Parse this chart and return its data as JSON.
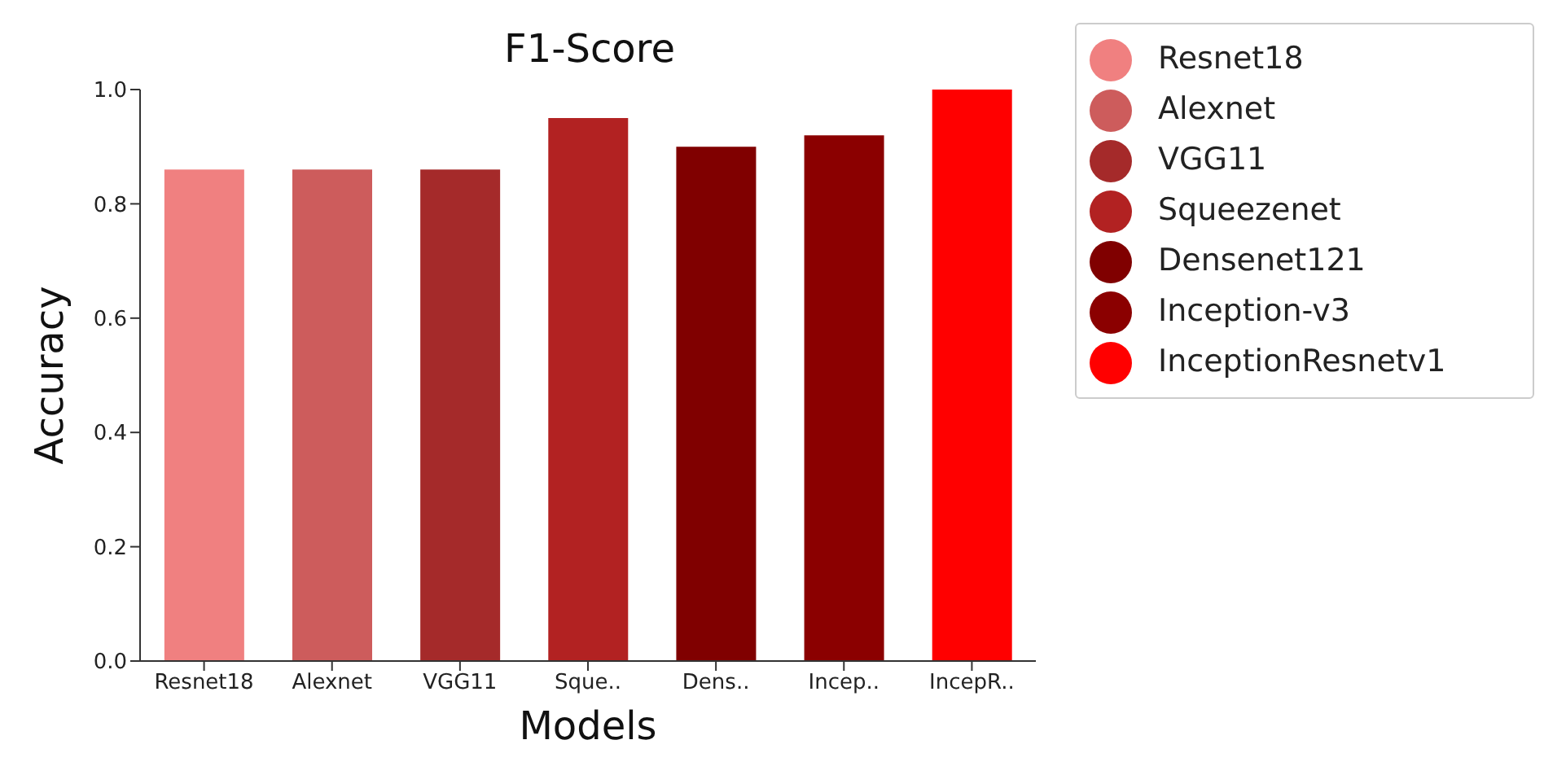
{
  "chart_data": {
    "type": "bar",
    "title": "F1-Score",
    "xlabel": "Models",
    "ylabel": "Accuracy",
    "categories": [
      "Resnet18",
      "Alexnet",
      "VGG11",
      "Sque..",
      "Dens..",
      "Incep..",
      "IncepR.."
    ],
    "series": [
      {
        "name": "Resnet18",
        "color": "#f08080",
        "values": [
          0.86,
          null,
          null,
          null,
          null,
          null,
          null
        ]
      },
      {
        "name": "Alexnet",
        "color": "#cd5c5c",
        "values": [
          null,
          0.86,
          null,
          null,
          null,
          null,
          null
        ]
      },
      {
        "name": "VGG11",
        "color": "#a52a2a",
        "values": [
          null,
          null,
          0.86,
          null,
          null,
          null,
          null
        ]
      },
      {
        "name": "Squeezenet",
        "color": "#b22222",
        "values": [
          null,
          null,
          null,
          0.95,
          null,
          null,
          null
        ]
      },
      {
        "name": "Densenet121",
        "color": "#800000",
        "values": [
          null,
          null,
          null,
          null,
          0.9,
          null,
          null
        ]
      },
      {
        "name": "Inception-v3",
        "color": "#8b0000",
        "values": [
          null,
          null,
          null,
          null,
          null,
          0.92,
          null
        ]
      },
      {
        "name": "InceptionResnetv1",
        "color": "#ff0000",
        "values": [
          null,
          null,
          null,
          null,
          null,
          null,
          1.0
        ]
      }
    ],
    "ylim": [
      0,
      1.0
    ],
    "yticks": [
      {
        "value": 0,
        "label": "0.0"
      },
      {
        "value": 0.2,
        "label": "0.2"
      },
      {
        "value": 0.4,
        "label": "0.4"
      },
      {
        "value": 0.6,
        "label": "0.6"
      },
      {
        "value": 0.8,
        "label": "0.8"
      },
      {
        "value": 1.0,
        "label": "1.0"
      }
    ],
    "grid": false,
    "legend": "right"
  }
}
